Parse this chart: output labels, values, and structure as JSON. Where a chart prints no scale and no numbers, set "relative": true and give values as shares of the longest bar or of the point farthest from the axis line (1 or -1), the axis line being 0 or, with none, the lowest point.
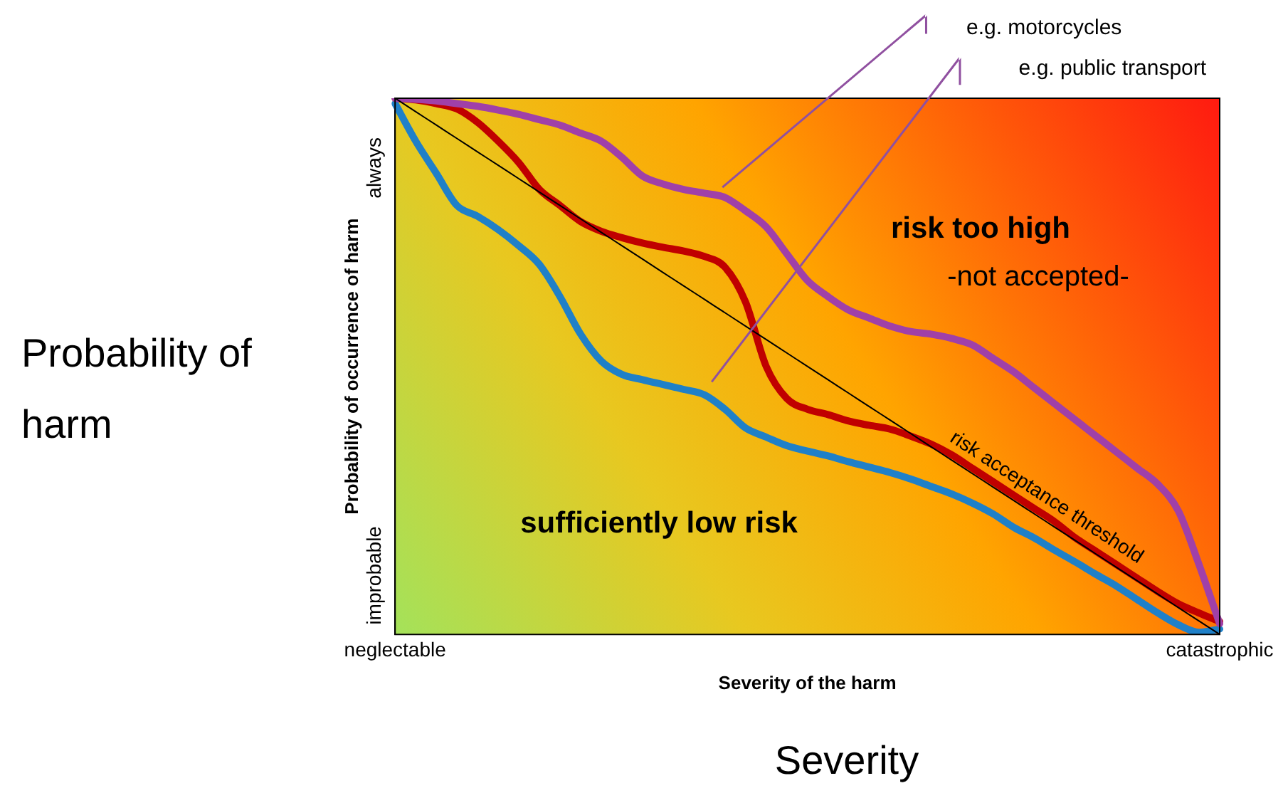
{
  "chart_data": {
    "type": "line",
    "relative": true,
    "xlabel": "Severity of the harm",
    "ylabel": "Probability of occurrence of harm",
    "categories": [
      "neglectable",
      null,
      null,
      null,
      null,
      null,
      null,
      null,
      null,
      null,
      null,
      null,
      null,
      null,
      null,
      null,
      null,
      null,
      null,
      null,
      null,
      null,
      null,
      null,
      null,
      null,
      null,
      null,
      null,
      null,
      null,
      null,
      null,
      null,
      null,
      null,
      null,
      null,
      null,
      null,
      "catastrophic"
    ],
    "series": [
      {
        "color": "#000000",
        "values": [
          1,
          0.975,
          0.95,
          0.925,
          0.9,
          0.875,
          0.85,
          0.825,
          0.8,
          0.775,
          0.75,
          0.725,
          0.7,
          0.675,
          0.65,
          0.625,
          0.6,
          0.575,
          0.55,
          0.525,
          0.5,
          0.475,
          0.45,
          0.425,
          0.4,
          0.375,
          0.35,
          0.325,
          0.3,
          0.275,
          0.25,
          0.225,
          0.2,
          0.175,
          0.15,
          0.125,
          0.1,
          0.075,
          0.05,
          0.025,
          0
        ]
      },
      {
        "color": "#a040a8",
        "values": [
          1,
          0.998,
          0.995,
          0.99,
          0.985,
          0.978,
          0.97,
          0.96,
          0.95,
          0.935,
          0.92,
          0.89,
          0.855,
          0.84,
          0.83,
          0.823,
          0.815,
          0.79,
          0.76,
          0.71,
          0.66,
          0.63,
          0.605,
          0.59,
          0.575,
          0.565,
          0.56,
          0.552,
          0.54,
          0.515,
          0.49,
          0.46,
          0.43,
          0.4,
          0.37,
          0.34,
          0.31,
          0.28,
          0.23,
          0.13,
          0.02
        ]
      },
      {
        "color": "#c00000",
        "values": [
          1,
          0.997,
          0.99,
          0.98,
          0.955,
          0.92,
          0.88,
          0.83,
          0.8,
          0.77,
          0.752,
          0.74,
          0.73,
          0.722,
          0.715,
          0.705,
          0.685,
          0.62,
          0.5,
          0.44,
          0.42,
          0.41,
          0.398,
          0.39,
          0.383,
          0.37,
          0.355,
          0.335,
          0.31,
          0.285,
          0.26,
          0.235,
          0.21,
          0.18,
          0.155,
          0.13,
          0.105,
          0.08,
          0.057,
          0.04,
          0.024
        ]
      },
      {
        "color": "#1f80c8",
        "values": [
          0.99,
          0.92,
          0.86,
          0.8,
          0.78,
          0.755,
          0.725,
          0.69,
          0.63,
          0.56,
          0.51,
          0.485,
          0.475,
          0.466,
          0.457,
          0.447,
          0.42,
          0.385,
          0.368,
          0.352,
          0.342,
          0.333,
          0.322,
          0.312,
          0.302,
          0.29,
          0.276,
          0.262,
          0.245,
          0.225,
          0.2,
          0.18,
          0.157,
          0.135,
          0.112,
          0.09,
          0.065,
          0.04,
          0.018,
          0.004,
          0.01
        ]
      }
    ],
    "annotations": [
      "risk too high",
      "-not accepted-",
      "sufficiently low risk",
      "risk acceptance threshold",
      "e.g. motorcycles",
      "e.g. public transport",
      "always",
      "improbable",
      "Probability of harm",
      "Severity"
    ]
  }
}
